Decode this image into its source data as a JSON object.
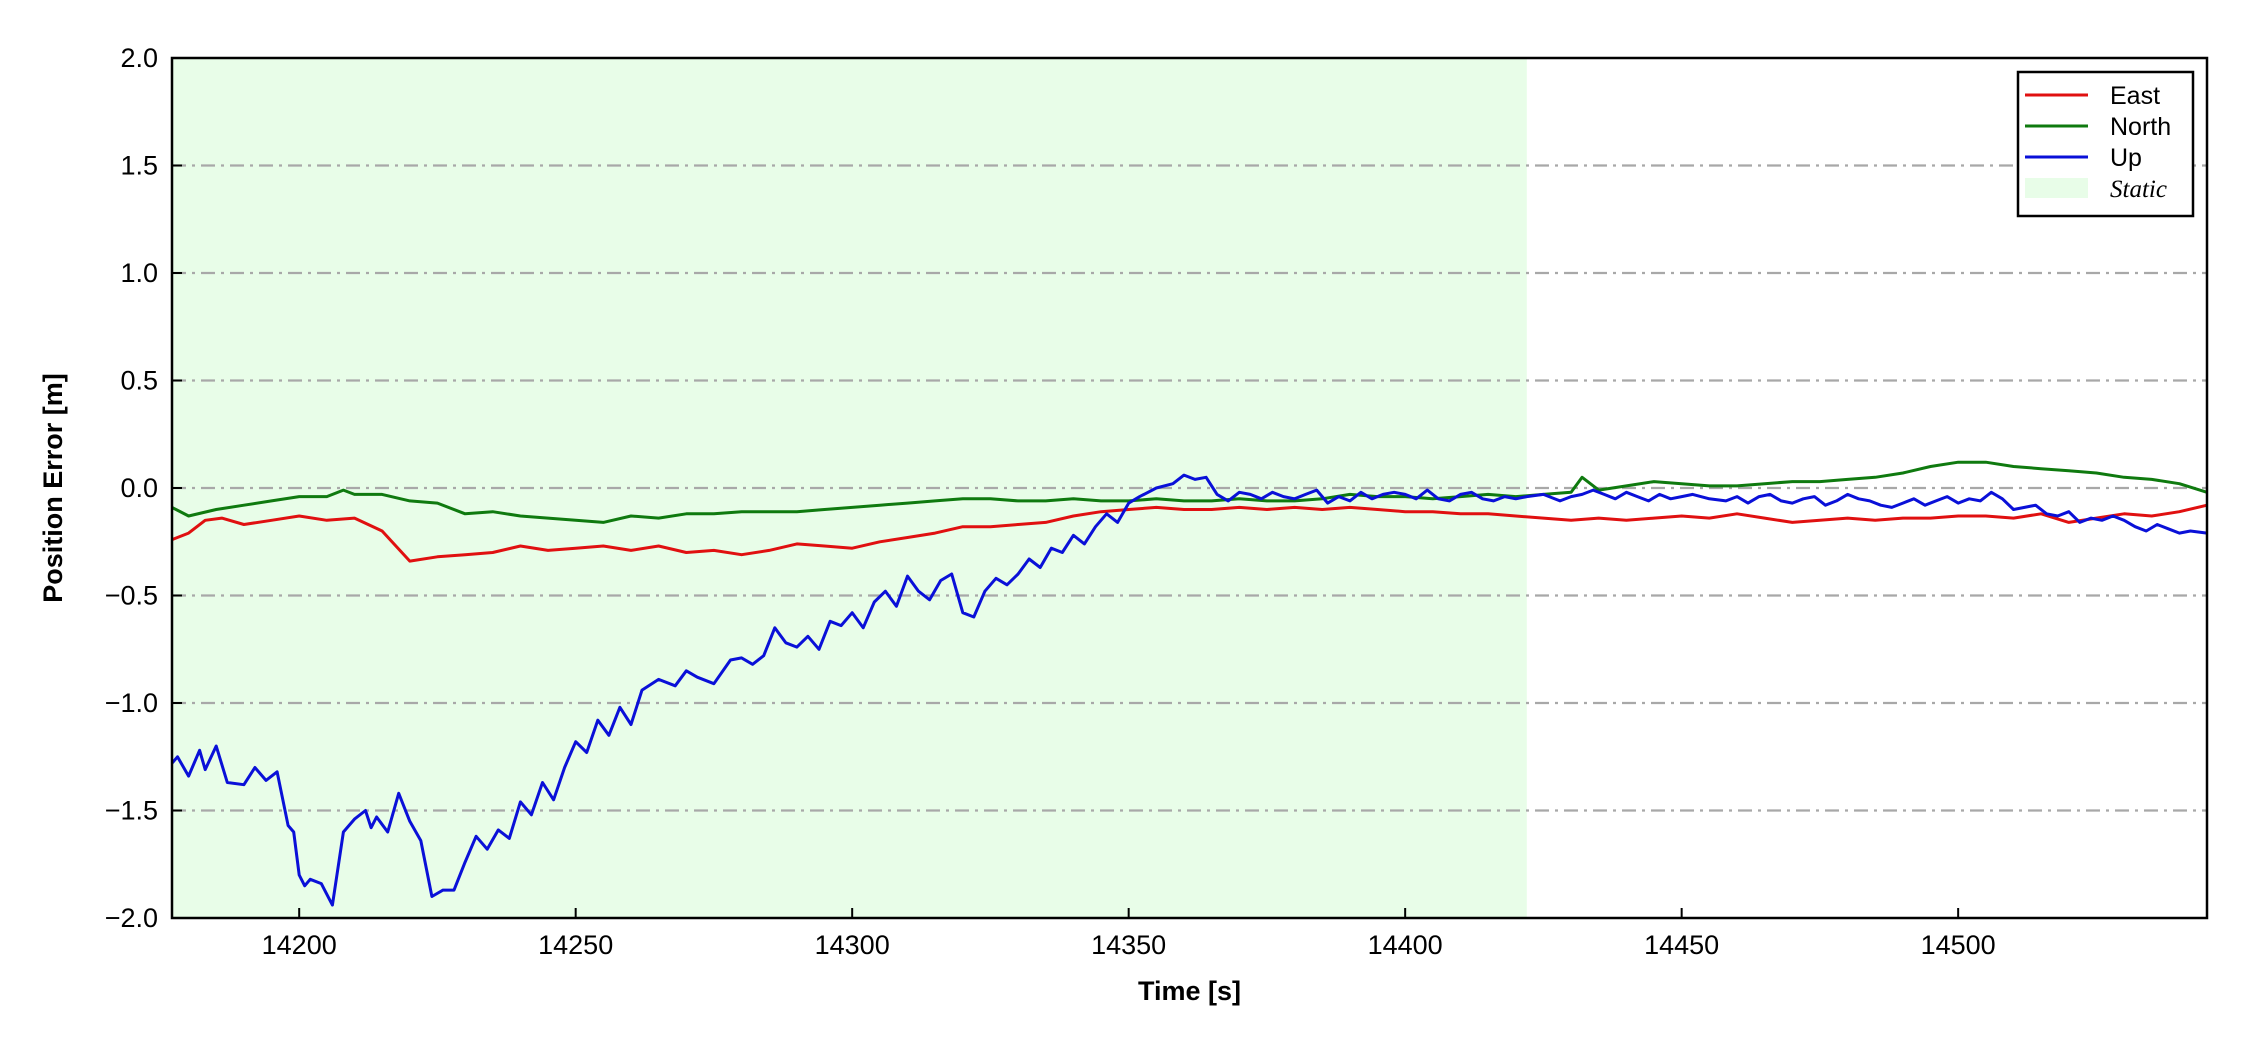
{
  "chart_data": {
    "type": "line",
    "xlabel": "Time [s]",
    "ylabel": "Position Error [m]",
    "xlim": [
      14177,
      14545
    ],
    "ylim": [
      -2.0,
      2.0
    ],
    "x_ticks": [
      14200,
      14250,
      14300,
      14350,
      14400,
      14450,
      14500
    ],
    "y_ticks": [
      2.0,
      1.5,
      1.0,
      0.5,
      0.0,
      -0.5,
      -1.0,
      -1.5,
      -2.0
    ],
    "y_tick_labels": [
      "2.0",
      "1.5",
      "1.0",
      "0.5",
      "0.0",
      "−0.5",
      "−1.0",
      "−1.5",
      "−2.0"
    ],
    "grid": "horizontal dash-dot",
    "legend_position": "top-right",
    "shaded_region": {
      "label": "Static",
      "x_start": 14177,
      "x_end": 14422,
      "color": "#e8fde8"
    },
    "series": [
      {
        "name": "East",
        "color": "#e01010",
        "x": [
          14177,
          14180,
          14183,
          14186,
          14190,
          14195,
          14200,
          14205,
          14210,
          14215,
          14220,
          14225,
          14230,
          14235,
          14240,
          14245,
          14250,
          14255,
          14260,
          14265,
          14270,
          14275,
          14280,
          14285,
          14290,
          14295,
          14300,
          14305,
          14310,
          14315,
          14320,
          14325,
          14330,
          14335,
          14340,
          14345,
          14350,
          14355,
          14360,
          14365,
          14370,
          14375,
          14380,
          14385,
          14390,
          14395,
          14400,
          14405,
          14410,
          14415,
          14420,
          14425,
          14430,
          14435,
          14440,
          14445,
          14450,
          14455,
          14460,
          14465,
          14470,
          14475,
          14480,
          14485,
          14490,
          14495,
          14500,
          14505,
          14510,
          14515,
          14520,
          14525,
          14530,
          14535,
          14540,
          14545
        ],
        "values": [
          -0.24,
          -0.21,
          -0.15,
          -0.14,
          -0.17,
          -0.15,
          -0.13,
          -0.15,
          -0.14,
          -0.2,
          -0.34,
          -0.32,
          -0.31,
          -0.3,
          -0.27,
          -0.29,
          -0.28,
          -0.27,
          -0.29,
          -0.27,
          -0.3,
          -0.29,
          -0.31,
          -0.29,
          -0.26,
          -0.27,
          -0.28,
          -0.25,
          -0.23,
          -0.21,
          -0.18,
          -0.18,
          -0.17,
          -0.16,
          -0.13,
          -0.11,
          -0.1,
          -0.09,
          -0.1,
          -0.1,
          -0.09,
          -0.1,
          -0.09,
          -0.1,
          -0.09,
          -0.1,
          -0.11,
          -0.11,
          -0.12,
          -0.12,
          -0.13,
          -0.14,
          -0.15,
          -0.14,
          -0.15,
          -0.14,
          -0.13,
          -0.14,
          -0.12,
          -0.14,
          -0.16,
          -0.15,
          -0.14,
          -0.15,
          -0.14,
          -0.14,
          -0.13,
          -0.13,
          -0.14,
          -0.12,
          -0.16,
          -0.14,
          -0.12,
          -0.13,
          -0.11,
          -0.08
        ]
      },
      {
        "name": "North",
        "color": "#0f7a0f",
        "x": [
          14177,
          14180,
          14185,
          14190,
          14195,
          14200,
          14205,
          14208,
          14210,
          14215,
          14220,
          14225,
          14230,
          14235,
          14240,
          14245,
          14250,
          14255,
          14260,
          14265,
          14270,
          14275,
          14280,
          14285,
          14290,
          14295,
          14300,
          14305,
          14310,
          14315,
          14320,
          14325,
          14330,
          14335,
          14340,
          14345,
          14350,
          14355,
          14360,
          14365,
          14370,
          14375,
          14380,
          14385,
          14390,
          14395,
          14400,
          14405,
          14410,
          14415,
          14420,
          14425,
          14430,
          14432,
          14435,
          14440,
          14445,
          14450,
          14455,
          14460,
          14465,
          14470,
          14475,
          14480,
          14485,
          14490,
          14495,
          14500,
          14505,
          14510,
          14515,
          14520,
          14525,
          14530,
          14535,
          14540,
          14545
        ],
        "values": [
          -0.09,
          -0.13,
          -0.1,
          -0.08,
          -0.06,
          -0.04,
          -0.04,
          -0.01,
          -0.03,
          -0.03,
          -0.06,
          -0.07,
          -0.12,
          -0.11,
          -0.13,
          -0.14,
          -0.15,
          -0.16,
          -0.13,
          -0.14,
          -0.12,
          -0.12,
          -0.11,
          -0.11,
          -0.11,
          -0.1,
          -0.09,
          -0.08,
          -0.07,
          -0.06,
          -0.05,
          -0.05,
          -0.06,
          -0.06,
          -0.05,
          -0.06,
          -0.06,
          -0.05,
          -0.06,
          -0.06,
          -0.05,
          -0.06,
          -0.06,
          -0.05,
          -0.03,
          -0.04,
          -0.04,
          -0.05,
          -0.04,
          -0.03,
          -0.04,
          -0.03,
          -0.02,
          0.05,
          -0.01,
          0.01,
          0.03,
          0.02,
          0.01,
          0.01,
          0.02,
          0.03,
          0.03,
          0.04,
          0.05,
          0.07,
          0.1,
          0.12,
          0.12,
          0.1,
          0.09,
          0.08,
          0.07,
          0.05,
          0.04,
          0.02,
          -0.02
        ]
      },
      {
        "name": "Up",
        "color": "#0a10d8",
        "x": [
          14177,
          14178,
          14180,
          14182,
          14183,
          14185,
          14187,
          14190,
          14192,
          14194,
          14196,
          14198,
          14199,
          14200,
          14201,
          14202,
          14204,
          14206,
          14208,
          14210,
          14212,
          14213,
          14214,
          14216,
          14218,
          14220,
          14222,
          14224,
          14226,
          14228,
          14230,
          14232,
          14234,
          14236,
          14238,
          14240,
          14242,
          14244,
          14246,
          14248,
          14250,
          14252,
          14254,
          14256,
          14258,
          14260,
          14262,
          14265,
          14268,
          14270,
          14272,
          14275,
          14278,
          14280,
          14282,
          14284,
          14286,
          14288,
          14290,
          14292,
          14294,
          14296,
          14298,
          14300,
          14302,
          14304,
          14306,
          14308,
          14310,
          14312,
          14314,
          14316,
          14318,
          14320,
          14322,
          14324,
          14326,
          14328,
          14330,
          14332,
          14334,
          14336,
          14338,
          14340,
          14342,
          14344,
          14346,
          14348,
          14350,
          14352,
          14355,
          14358,
          14360,
          14362,
          14364,
          14366,
          14368,
          14370,
          14372,
          14374,
          14376,
          14378,
          14380,
          14382,
          14384,
          14386,
          14388,
          14390,
          14392,
          14394,
          14396,
          14398,
          14400,
          14402,
          14404,
          14406,
          14408,
          14410,
          14412,
          14414,
          14416,
          14418,
          14420,
          14422,
          14425,
          14428,
          14430,
          14432,
          14434,
          14436,
          14438,
          14440,
          14442,
          14444,
          14446,
          14448,
          14450,
          14452,
          14455,
          14458,
          14460,
          14462,
          14464,
          14466,
          14468,
          14470,
          14472,
          14474,
          14476,
          14478,
          14480,
          14482,
          14484,
          14486,
          14488,
          14490,
          14492,
          14494,
          14496,
          14498,
          14500,
          14502,
          14504,
          14506,
          14508,
          14510,
          14512,
          14514,
          14516,
          14518,
          14520,
          14522,
          14524,
          14526,
          14528,
          14530,
          14532,
          14534,
          14536,
          14538,
          14540,
          14542,
          14545
        ],
        "values": [
          -1.28,
          -1.25,
          -1.34,
          -1.22,
          -1.31,
          -1.2,
          -1.37,
          -1.38,
          -1.3,
          -1.36,
          -1.32,
          -1.57,
          -1.6,
          -1.8,
          -1.85,
          -1.82,
          -1.84,
          -1.94,
          -1.6,
          -1.54,
          -1.5,
          -1.58,
          -1.53,
          -1.6,
          -1.42,
          -1.55,
          -1.64,
          -1.9,
          -1.87,
          -1.87,
          -1.74,
          -1.62,
          -1.68,
          -1.59,
          -1.63,
          -1.46,
          -1.52,
          -1.37,
          -1.45,
          -1.3,
          -1.18,
          -1.23,
          -1.08,
          -1.15,
          -1.02,
          -1.1,
          -0.94,
          -0.89,
          -0.92,
          -0.85,
          -0.88,
          -0.91,
          -0.8,
          -0.79,
          -0.82,
          -0.78,
          -0.65,
          -0.72,
          -0.74,
          -0.69,
          -0.75,
          -0.62,
          -0.64,
          -0.58,
          -0.65,
          -0.53,
          -0.48,
          -0.55,
          -0.41,
          -0.48,
          -0.52,
          -0.43,
          -0.4,
          -0.58,
          -0.6,
          -0.48,
          -0.42,
          -0.45,
          -0.4,
          -0.33,
          -0.37,
          -0.28,
          -0.3,
          -0.22,
          -0.26,
          -0.18,
          -0.12,
          -0.16,
          -0.07,
          -0.04,
          0.0,
          0.02,
          0.06,
          0.04,
          0.05,
          -0.03,
          -0.06,
          -0.02,
          -0.03,
          -0.05,
          -0.02,
          -0.04,
          -0.05,
          -0.03,
          -0.01,
          -0.07,
          -0.04,
          -0.06,
          -0.02,
          -0.05,
          -0.03,
          -0.02,
          -0.03,
          -0.05,
          -0.01,
          -0.05,
          -0.06,
          -0.03,
          -0.02,
          -0.05,
          -0.06,
          -0.04,
          -0.05,
          -0.04,
          -0.03,
          -0.06,
          -0.04,
          -0.03,
          -0.01,
          -0.03,
          -0.05,
          -0.02,
          -0.04,
          -0.06,
          -0.03,
          -0.05,
          -0.04,
          -0.03,
          -0.05,
          -0.06,
          -0.04,
          -0.07,
          -0.04,
          -0.03,
          -0.06,
          -0.07,
          -0.05,
          -0.04,
          -0.08,
          -0.06,
          -0.03,
          -0.05,
          -0.06,
          -0.08,
          -0.09,
          -0.07,
          -0.05,
          -0.08,
          -0.06,
          -0.04,
          -0.07,
          -0.05,
          -0.06,
          -0.02,
          -0.05,
          -0.1,
          -0.09,
          -0.08,
          -0.12,
          -0.13,
          -0.11,
          -0.16,
          -0.14,
          -0.15,
          -0.13,
          -0.15,
          -0.18,
          -0.2,
          -0.17,
          -0.19,
          -0.21,
          -0.2,
          -0.21
        ]
      }
    ]
  }
}
